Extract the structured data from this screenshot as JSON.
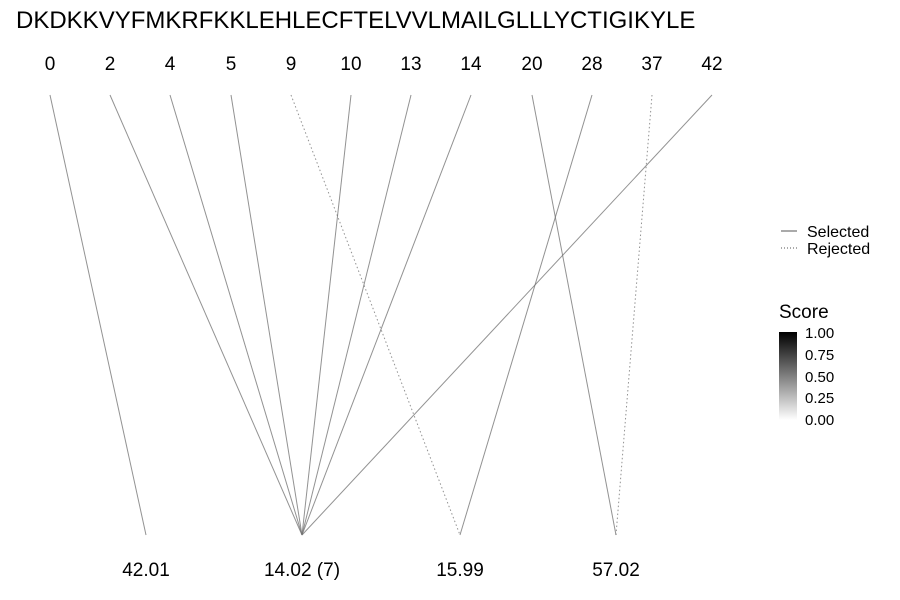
{
  "sequence": "DKDKKVYFMKRFKKLEHLECFTELVVLMAILGLLLYCTIGIKYLE",
  "positions": [
    "0",
    "2",
    "4",
    "5",
    "9",
    "10",
    "13",
    "14",
    "20",
    "28",
    "37",
    "42"
  ],
  "masses": [
    "42.01",
    "14.02 (7)",
    "15.99",
    "57.02"
  ],
  "links": [
    {
      "position": "0",
      "mass": "42.01",
      "status": "selected",
      "score": 0.6
    },
    {
      "position": "2",
      "mass": "14.02 (7)",
      "status": "selected",
      "score": 0.6
    },
    {
      "position": "4",
      "mass": "14.02 (7)",
      "status": "selected",
      "score": 0.6
    },
    {
      "position": "5",
      "mass": "14.02 (7)",
      "status": "selected",
      "score": 0.6
    },
    {
      "position": "9",
      "mass": "15.99",
      "status": "rejected",
      "score": 0.6
    },
    {
      "position": "10",
      "mass": "14.02 (7)",
      "status": "selected",
      "score": 0.6
    },
    {
      "position": "13",
      "mass": "14.02 (7)",
      "status": "selected",
      "score": 0.6
    },
    {
      "position": "14",
      "mass": "14.02 (7)",
      "status": "selected",
      "score": 0.6
    },
    {
      "position": "20",
      "mass": "57.02",
      "status": "selected",
      "score": 0.6
    },
    {
      "position": "28",
      "mass": "15.99",
      "status": "selected",
      "score": 0.6
    },
    {
      "position": "37",
      "mass": "57.02",
      "status": "rejected",
      "score": 0.6
    },
    {
      "position": "42",
      "mass": "14.02 (7)",
      "status": "selected",
      "score": 0.6
    }
  ],
  "legend": {
    "selected_label": "Selected",
    "rejected_label": "Rejected"
  },
  "score_legend": {
    "title": "Score",
    "ticks": [
      "1.00",
      "0.75",
      "0.50",
      "0.25",
      "0.00"
    ],
    "color_high": "#000000",
    "color_low": "#ffffff"
  },
  "colors": {
    "line": "#707070",
    "text": "#000000"
  }
}
